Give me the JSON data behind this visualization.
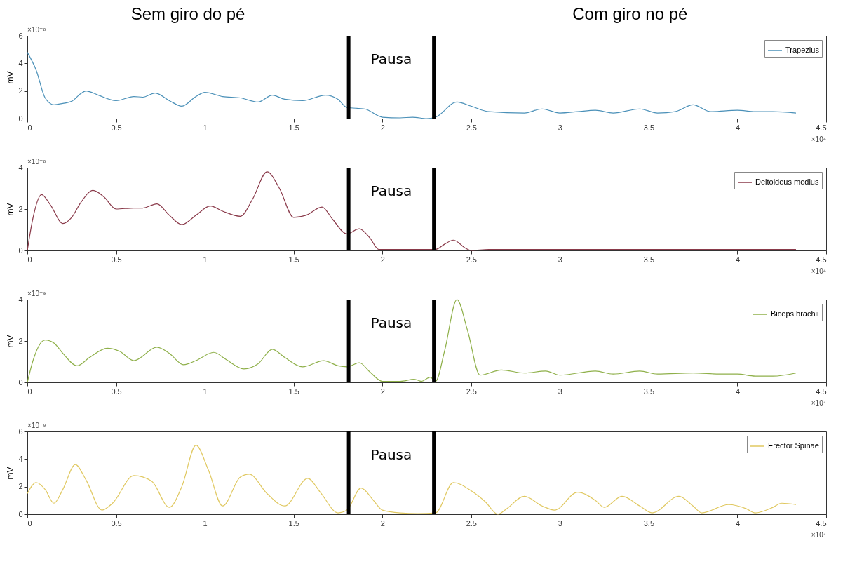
{
  "chart_data": [
    {
      "type": "line",
      "ylabel": "mV",
      "xlim": [
        0,
        4.5
      ],
      "xticks": [
        0,
        0.5,
        1,
        1.5,
        2,
        2.5,
        3,
        3.5,
        4,
        4.5
      ],
      "ylim": [
        0,
        6
      ],
      "yticks": [
        0,
        2,
        4,
        6
      ],
      "legend": "top right",
      "line_style": "solid",
      "x": [
        0,
        0.05,
        0.1,
        0.15,
        0.2,
        0.25,
        0.3,
        0.33,
        0.35,
        0.4,
        0.5,
        0.6,
        0.65,
        0.72,
        0.8,
        0.87,
        0.95,
        1.0,
        1.1,
        1.2,
        1.3,
        1.38,
        1.45,
        1.55,
        1.68,
        1.75,
        1.8,
        1.9,
        2.0,
        2.1,
        2.17,
        2.25,
        2.3,
        2.42,
        2.5,
        2.6,
        2.8,
        2.9,
        3.0,
        3.1,
        3.2,
        3.3,
        3.45,
        3.55,
        3.65,
        3.75,
        3.85,
        4.0,
        4.1,
        4.2,
        4.33
      ],
      "series": [
        {
          "name": "Trapezius",
          "color": "#4a90b8",
          "values": [
            4.8,
            3.5,
            1.5,
            1.0,
            1.1,
            1.25,
            1.8,
            2.0,
            1.95,
            1.7,
            1.3,
            1.6,
            1.55,
            1.85,
            1.3,
            0.9,
            1.6,
            1.9,
            1.6,
            1.5,
            1.2,
            1.7,
            1.4,
            1.3,
            1.7,
            1.4,
            0.8,
            0.7,
            0.1,
            0.05,
            0.1,
            0,
            0.1,
            1.2,
            0.9,
            0.5,
            0.4,
            0.7,
            0.4,
            0.5,
            0.6,
            0.4,
            0.7,
            0.4,
            0.5,
            1.0,
            0.5,
            0.6,
            0.5,
            0.5,
            0.4
          ]
        }
      ],
      "ref_lines": [
        {
          "axis": "x",
          "value": 1.81,
          "color": "#000000"
        },
        {
          "axis": "x",
          "value": 2.29,
          "color": "#000000"
        }
      ],
      "annotations": [
        "×10⁻⁸",
        "×10⁴",
        "Pausa",
        "Sem giro do pé",
        "Com giro no pé"
      ]
    },
    {
      "type": "line",
      "ylabel": "mV",
      "xlim": [
        0,
        4.5
      ],
      "xticks": [
        0,
        0.5,
        1,
        1.5,
        2,
        2.5,
        3,
        3.5,
        4,
        4.5
      ],
      "ylim": [
        0,
        4
      ],
      "yticks": [
        0,
        2,
        4
      ],
      "legend": "top right",
      "line_style": "solid",
      "x": [
        0,
        0.03,
        0.08,
        0.13,
        0.2,
        0.25,
        0.3,
        0.37,
        0.43,
        0.5,
        0.6,
        0.65,
        0.73,
        0.8,
        0.87,
        0.95,
        1.03,
        1.1,
        1.2,
        1.27,
        1.35,
        1.42,
        1.5,
        1.57,
        1.66,
        1.72,
        1.8,
        1.87,
        1.93,
        1.98,
        2.1,
        2.2,
        2.3,
        2.35,
        2.4,
        2.47,
        2.5,
        2.6,
        3.0,
        3.5,
        4.0,
        4.33
      ],
      "series": [
        {
          "name": "Deltoideus medius",
          "color": "#8a3a4a",
          "values": [
            0,
            1.5,
            2.7,
            2.2,
            1.3,
            1.6,
            2.3,
            2.9,
            2.6,
            2.0,
            2.05,
            2.05,
            2.25,
            1.7,
            1.25,
            1.7,
            2.15,
            1.9,
            1.65,
            2.5,
            3.8,
            3.0,
            1.6,
            1.7,
            2.1,
            1.5,
            0.8,
            1.05,
            0.6,
            0.05,
            0.05,
            0.05,
            0.05,
            0.3,
            0.5,
            0.1,
            0,
            0.05,
            0.05,
            0.05,
            0.05,
            0.05
          ]
        }
      ],
      "ref_lines": [
        {
          "axis": "x",
          "value": 1.81,
          "color": "#000000"
        },
        {
          "axis": "x",
          "value": 2.29,
          "color": "#000000"
        }
      ],
      "annotations": [
        "×10⁻⁸",
        "×10⁴",
        "Pausa"
      ]
    },
    {
      "type": "line",
      "ylabel": "mV",
      "xlim": [
        0,
        4.5
      ],
      "xticks": [
        0,
        0.5,
        1,
        1.5,
        2,
        2.5,
        3,
        3.5,
        4,
        4.5
      ],
      "ylim": [
        0,
        4
      ],
      "yticks": [
        0,
        2,
        4
      ],
      "legend": "top right",
      "line_style": "solid",
      "x": [
        0,
        0.03,
        0.1,
        0.15,
        0.2,
        0.28,
        0.35,
        0.45,
        0.52,
        0.6,
        0.73,
        0.8,
        0.88,
        0.95,
        1.05,
        1.12,
        1.22,
        1.3,
        1.38,
        1.45,
        1.55,
        1.67,
        1.75,
        1.8,
        1.87,
        1.93,
        2.0,
        2.1,
        2.18,
        2.22,
        2.27,
        2.3,
        2.35,
        2.42,
        2.48,
        2.55,
        2.67,
        2.8,
        2.92,
        3.0,
        3.2,
        3.3,
        3.45,
        3.55,
        3.75,
        3.9,
        4.0,
        4.1,
        4.2,
        4.33
      ],
      "series": [
        {
          "name": "Biceps brachii",
          "color": "#8fb04a",
          "values": [
            0,
            1.0,
            2.05,
            1.9,
            1.4,
            0.8,
            1.2,
            1.65,
            1.5,
            1.05,
            1.7,
            1.4,
            0.85,
            1.05,
            1.45,
            1.1,
            0.65,
            0.9,
            1.6,
            1.2,
            0.75,
            1.05,
            0.8,
            0.75,
            0.95,
            0.5,
            0.05,
            0.05,
            0.15,
            0.05,
            0.25,
            0.05,
            1.5,
            4.0,
            2.5,
            0.35,
            0.6,
            0.45,
            0.55,
            0.35,
            0.55,
            0.4,
            0.55,
            0.4,
            0.45,
            0.4,
            0.4,
            0.3,
            0.3,
            0.45
          ]
        }
      ],
      "ref_lines": [
        {
          "axis": "x",
          "value": 1.81,
          "color": "#000000"
        },
        {
          "axis": "x",
          "value": 2.29,
          "color": "#000000"
        }
      ],
      "annotations": [
        "×10⁻⁹",
        "×10⁴",
        "Pausa"
      ]
    },
    {
      "type": "line",
      "ylabel": "mV",
      "xlim": [
        0,
        4.5
      ],
      "xticks": [
        0,
        0.5,
        1,
        1.5,
        2,
        2.5,
        3,
        3.5,
        4,
        4.5
      ],
      "ylim": [
        0,
        6
      ],
      "yticks": [
        0,
        2,
        4,
        6
      ],
      "legend": "top right",
      "line_style": "solid",
      "x": [
        0,
        0.05,
        0.1,
        0.15,
        0.2,
        0.27,
        0.33,
        0.42,
        0.48,
        0.6,
        0.7,
        0.8,
        0.87,
        0.95,
        1.02,
        1.1,
        1.2,
        1.25,
        1.35,
        1.45,
        1.58,
        1.65,
        1.75,
        1.8,
        1.88,
        1.95,
        2.0,
        2.1,
        2.2,
        2.3,
        2.4,
        2.5,
        2.58,
        2.65,
        2.7,
        2.8,
        2.9,
        2.97,
        3.1,
        3.2,
        3.25,
        3.35,
        3.45,
        3.52,
        3.67,
        3.75,
        3.8,
        3.95,
        4.05,
        4.1,
        4.2,
        4.25,
        4.33
      ],
      "series": [
        {
          "name": "Erector Spinae",
          "color": "#e0c860",
          "values": [
            1.5,
            2.3,
            1.8,
            0.8,
            1.8,
            3.6,
            2.5,
            0.3,
            0.8,
            2.8,
            2.4,
            0.5,
            2.0,
            5.0,
            3.2,
            0.6,
            2.7,
            2.9,
            1.5,
            0.6,
            2.6,
            1.6,
            0.1,
            0.3,
            1.9,
            1.0,
            0.3,
            0.1,
            0.05,
            0.1,
            2.3,
            1.7,
            0.9,
            0,
            0.4,
            1.3,
            0.6,
            0.3,
            1.6,
            1.0,
            0.5,
            1.3,
            0.6,
            0.1,
            1.3,
            0.6,
            0.1,
            0.7,
            0.4,
            0.1,
            0.5,
            0.8,
            0.7
          ]
        }
      ],
      "ref_lines": [
        {
          "axis": "x",
          "value": 1.81,
          "color": "#000000"
        },
        {
          "axis": "x",
          "value": 2.29,
          "color": "#000000"
        }
      ],
      "annotations": [
        "×10⁻⁹",
        "×10⁴",
        "Pausa"
      ]
    }
  ]
}
